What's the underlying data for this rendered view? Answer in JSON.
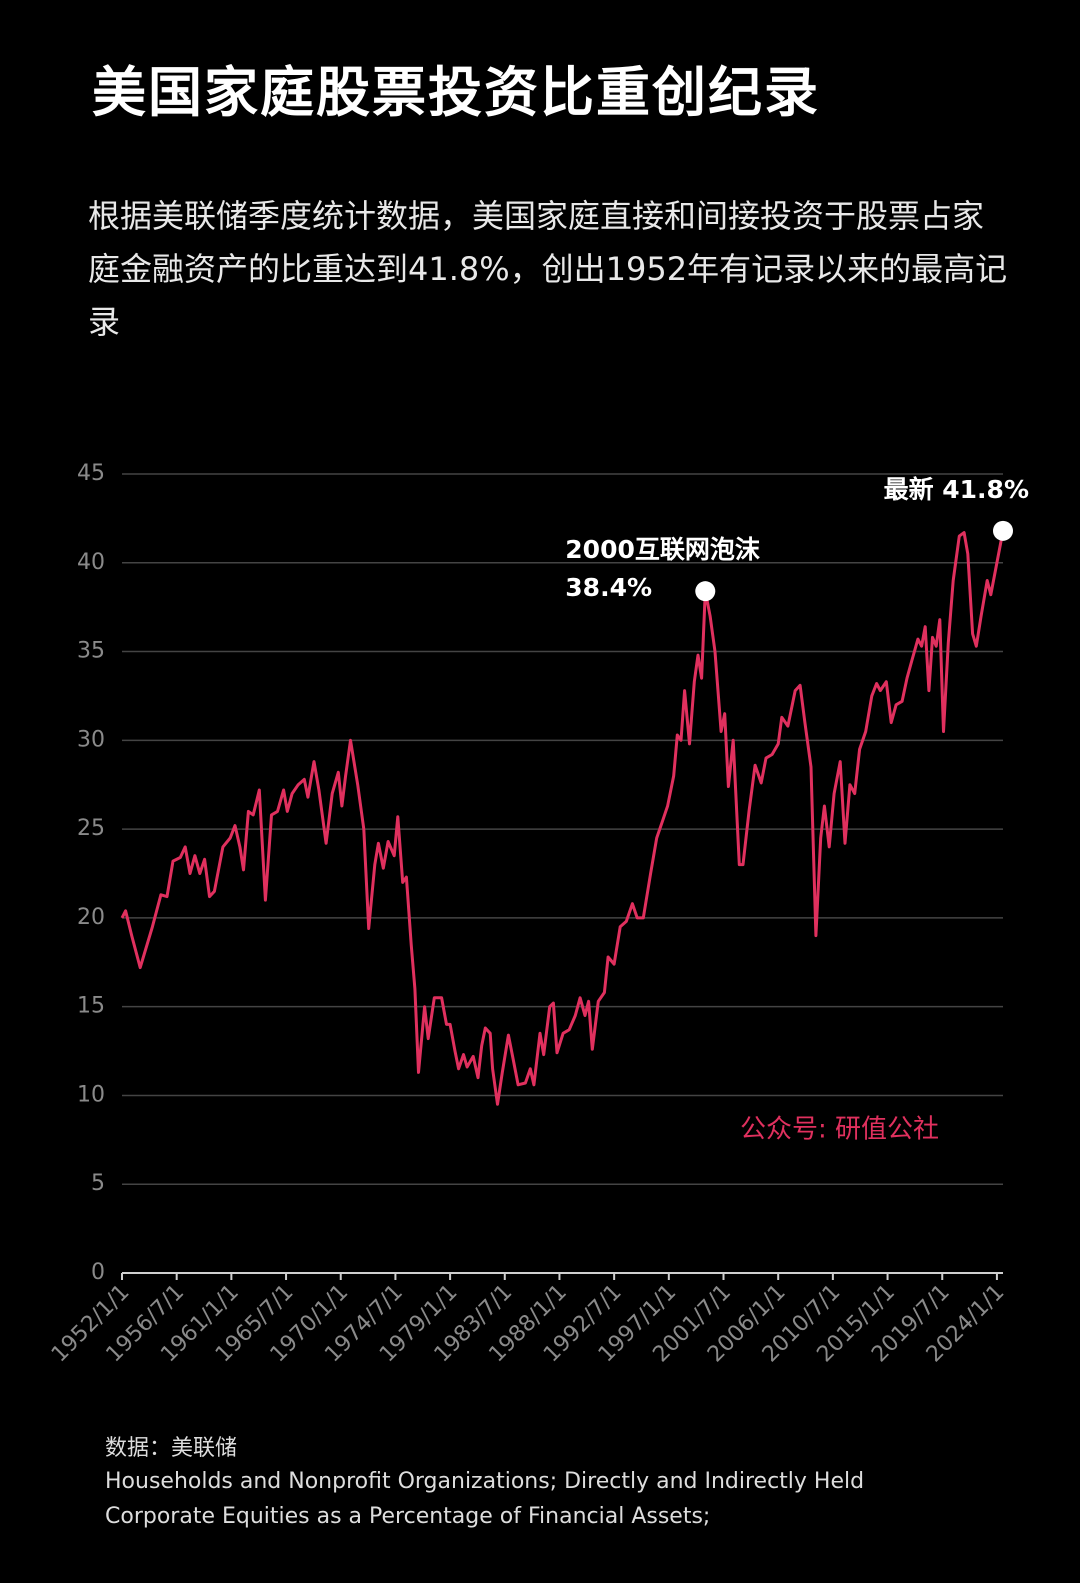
{
  "chart_data": {
    "type": "line",
    "title": "美国家庭股票投资比重创纪录",
    "subtitle": "根据美联储季度统计数据，美国家庭直接和间接投资于股票占家庭金融资产的比重达到41.8%，创出1952年有记录以来的最高记录",
    "color": "#e0305e",
    "grid": true,
    "x": [
      1952.0,
      1952.3,
      1952.8,
      1953.5,
      1954.5,
      1955.2,
      1955.7,
      1956.2,
      1956.8,
      1957.2,
      1957.6,
      1958.0,
      1958.4,
      1958.8,
      1959.2,
      1959.6,
      1960.3,
      1960.9,
      1961.3,
      1961.7,
      1962.0,
      1962.4,
      1962.8,
      1963.3,
      1963.8,
      1964.3,
      1964.8,
      1965.3,
      1965.6,
      1966.0,
      1966.5,
      1967.0,
      1967.3,
      1967.8,
      1968.2,
      1968.8,
      1969.3,
      1969.8,
      1970.1,
      1970.4,
      1970.8,
      1971.4,
      1971.9,
      1972.3,
      1972.8,
      1973.1,
      1973.5,
      1973.9,
      1974.4,
      1974.7,
      1975.1,
      1975.4,
      1975.8,
      1976.1,
      1976.4,
      1976.9,
      1977.2,
      1977.7,
      1978.3,
      1978.7,
      1979.0,
      1979.4,
      1979.7,
      1980.1,
      1980.4,
      1980.9,
      1981.3,
      1981.6,
      1981.9,
      1982.3,
      1982.5,
      1982.9,
      1983.3,
      1983.8,
      1984.2,
      1984.6,
      1985.2,
      1985.6,
      1985.9,
      1986.4,
      1986.7,
      1987.2,
      1987.5,
      1987.8,
      1988.3,
      1988.8,
      1989.3,
      1989.7,
      1990.1,
      1990.4,
      1990.7,
      1991.2,
      1991.7,
      1992.0,
      1992.5,
      1993.0,
      1993.5,
      1994.0,
      1994.4,
      1994.9,
      1995.5,
      1996.0,
      1996.5,
      1996.9,
      1997.4,
      1997.7,
      1998.0,
      1998.3,
      1998.7,
      1999.1,
      1999.4,
      1999.7,
      2000.0,
      2000.4,
      2000.8,
      2001.3,
      2001.6,
      2001.9,
      2002.3,
      2002.8,
      2003.1,
      2003.6,
      2004.1,
      2004.6,
      2005.0,
      2005.5,
      2006.0,
      2006.3,
      2006.8,
      2007.4,
      2007.8,
      2008.2,
      2008.7,
      2009.1,
      2009.5,
      2009.8,
      2010.2,
      2010.6,
      2011.1,
      2011.5,
      2011.9,
      2012.3,
      2012.7,
      2013.2,
      2013.7,
      2014.1,
      2014.4,
      2014.9,
      2015.3,
      2015.7,
      2016.2,
      2016.6,
      2017.0,
      2017.5,
      2017.8,
      2018.1,
      2018.4,
      2018.7,
      2019.0,
      2019.3,
      2019.6,
      2020.0,
      2020.4,
      2020.9,
      2021.3,
      2021.6,
      2022.0,
      2022.3,
      2022.7,
      2023.2,
      2023.5,
      2024.5
    ],
    "values": [
      20.0,
      20.4,
      19.0,
      17.2,
      19.5,
      21.3,
      21.2,
      23.2,
      23.4,
      24.0,
      22.5,
      23.5,
      22.5,
      23.3,
      21.2,
      21.5,
      24.0,
      24.5,
      25.2,
      24.0,
      22.7,
      26.0,
      25.8,
      27.2,
      21.0,
      25.8,
      26.0,
      27.2,
      26.0,
      27.0,
      27.5,
      27.8,
      26.8,
      28.8,
      27.2,
      24.2,
      27.0,
      28.2,
      26.3,
      28.0,
      30.0,
      27.5,
      25.0,
      19.4,
      23.0,
      24.2,
      22.8,
      24.3,
      23.5,
      25.7,
      22.0,
      22.3,
      18.5,
      16.0,
      11.3,
      15.0,
      13.2,
      15.5,
      15.5,
      14.0,
      14.0,
      12.5,
      11.5,
      12.3,
      11.6,
      12.2,
      11.0,
      12.8,
      13.8,
      13.5,
      11.5,
      9.5,
      11.3,
      13.4,
      12.0,
      10.6,
      10.7,
      11.5,
      10.6,
      13.5,
      12.3,
      15.0,
      15.2,
      12.4,
      13.5,
      13.7,
      14.5,
      15.5,
      14.5,
      15.3,
      12.6,
      15.3,
      15.8,
      17.8,
      17.4,
      19.5,
      19.8,
      20.8,
      20.0,
      20.0,
      22.5,
      24.5,
      25.5,
      26.3,
      28.0,
      30.3,
      30.0,
      32.8,
      29.8,
      33.3,
      34.8,
      33.5,
      38.4,
      37.0,
      35.0,
      30.5,
      31.5,
      27.4,
      30.0,
      23.0,
      23.0,
      26.0,
      28.6,
      27.6,
      29.0,
      29.2,
      29.8,
      31.3,
      30.8,
      32.8,
      33.1,
      31.0,
      28.5,
      19.0,
      24.5,
      26.3,
      24.0,
      27.0,
      28.8,
      24.2,
      27.5,
      27.0,
      29.5,
      30.5,
      32.5,
      33.2,
      32.8,
      33.3,
      31.0,
      32.0,
      32.2,
      33.5,
      34.5,
      35.7,
      35.3,
      36.4,
      32.8,
      35.8,
      35.3,
      36.8,
      30.5,
      35.5,
      39.0,
      41.5,
      41.7,
      40.5,
      36.0,
      35.3,
      37.0,
      39.0,
      38.2,
      41.8
    ],
    "xlim": [
      1952,
      2024.5
    ],
    "xticks": [
      {
        "value": 1952,
        "label": "1952/1/1"
      },
      {
        "value": 1956.5,
        "label": "1956/7/1"
      },
      {
        "value": 1961,
        "label": "1961/1/1"
      },
      {
        "value": 1965.5,
        "label": "1965/7/1"
      },
      {
        "value": 1970,
        "label": "1970/1/1"
      },
      {
        "value": 1974.5,
        "label": "1974/7/1"
      },
      {
        "value": 1979,
        "label": "1979/1/1"
      },
      {
        "value": 1983.5,
        "label": "1983/7/1"
      },
      {
        "value": 1988,
        "label": "1988/1/1"
      },
      {
        "value": 1992.5,
        "label": "1992/7/1"
      },
      {
        "value": 1997,
        "label": "1997/1/1"
      },
      {
        "value": 2001.5,
        "label": "2001/7/1"
      },
      {
        "value": 2006,
        "label": "2006/1/1"
      },
      {
        "value": 2010.5,
        "label": "2010/7/1"
      },
      {
        "value": 2015,
        "label": "2015/1/1"
      },
      {
        "value": 2019.5,
        "label": "2019/7/1"
      },
      {
        "value": 2024,
        "label": "2024/1/1"
      }
    ],
    "ylim": [
      0,
      45
    ],
    "yticks": [
      0,
      5,
      10,
      15,
      20,
      25,
      30,
      35,
      40,
      45
    ],
    "annotations": [
      "2000互联网泡沫",
      "38.4%",
      "最新 41.8%"
    ],
    "watermark": "公众号: 研值公社",
    "source": "数据：美联储",
    "note": "Households and Nonprofit Organizations; Directly and Indirectly Held Corporate Equities as a Percentage of Financial Assets;"
  }
}
